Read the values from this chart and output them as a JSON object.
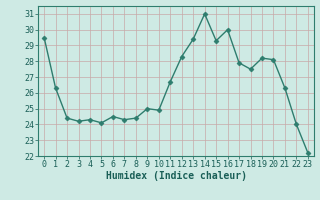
{
  "x": [
    0,
    1,
    2,
    3,
    4,
    5,
    6,
    7,
    8,
    9,
    10,
    11,
    12,
    13,
    14,
    15,
    16,
    17,
    18,
    19,
    20,
    21,
    22,
    23
  ],
  "y": [
    29.5,
    26.3,
    24.4,
    24.2,
    24.3,
    24.1,
    24.5,
    24.3,
    24.4,
    25.0,
    24.9,
    26.7,
    28.3,
    29.4,
    31.0,
    29.3,
    30.0,
    27.9,
    27.5,
    28.2,
    28.1,
    26.3,
    24.0,
    22.2
  ],
  "line_color": "#2e7d6e",
  "marker": "D",
  "marker_size": 2.5,
  "bg_color": "#ceeae4",
  "grid_color": "#b8d8d2",
  "xlabel": "Humidex (Indice chaleur)",
  "ylim": [
    22,
    31.5
  ],
  "xlim": [
    -0.5,
    23.5
  ],
  "yticks": [
    22,
    23,
    24,
    25,
    26,
    27,
    28,
    29,
    30,
    31
  ],
  "xticks": [
    0,
    1,
    2,
    3,
    4,
    5,
    6,
    7,
    8,
    9,
    10,
    11,
    12,
    13,
    14,
    15,
    16,
    17,
    18,
    19,
    20,
    21,
    22,
    23
  ],
  "tick_fontsize": 6,
  "xlabel_fontsize": 7
}
